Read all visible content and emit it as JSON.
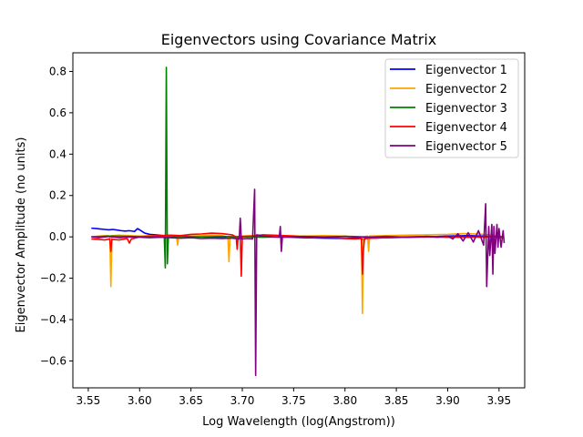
{
  "chart_data": {
    "type": "line",
    "title": "Eigenvectors using Covariance Matrix",
    "xlabel": "Log Wavelength (log(Angstrom))",
    "ylabel": "Eigenvector Amplitude (no units)",
    "xlim": [
      3.535,
      3.975
    ],
    "ylim": [
      -0.73,
      0.89
    ],
    "xticks": [
      3.55,
      3.6,
      3.65,
      3.7,
      3.75,
      3.8,
      3.85,
      3.9,
      3.95
    ],
    "xtick_labels": [
      "3.55",
      "3.60",
      "3.65",
      "3.70",
      "3.75",
      "3.80",
      "3.85",
      "3.90",
      "3.95"
    ],
    "yticks": [
      -0.6,
      -0.4,
      -0.2,
      0.0,
      0.2,
      0.4,
      0.6,
      0.8
    ],
    "ytick_labels": [
      "−0.6",
      "−0.4",
      "−0.2",
      "0.0",
      "0.2",
      "0.4",
      "0.6",
      "0.8"
    ],
    "grid": false,
    "legend_position": "top-right",
    "series": [
      {
        "name": "Eigenvector 1",
        "color": "#0000ff",
        "points": [
          [
            3.553,
            0.042
          ],
          [
            3.558,
            0.04
          ],
          [
            3.562,
            0.038
          ],
          [
            3.566,
            0.036
          ],
          [
            3.57,
            0.034
          ],
          [
            3.574,
            0.036
          ],
          [
            3.578,
            0.033
          ],
          [
            3.582,
            0.03
          ],
          [
            3.586,
            0.028
          ],
          [
            3.59,
            0.03
          ],
          [
            3.595,
            0.026
          ],
          [
            3.598,
            0.04
          ],
          [
            3.6,
            0.034
          ],
          [
            3.605,
            0.018
          ],
          [
            3.61,
            0.012
          ],
          [
            3.615,
            0.01
          ],
          [
            3.62,
            0.008
          ],
          [
            3.625,
            0.005
          ],
          [
            3.63,
            0.006
          ],
          [
            3.64,
            0.004
          ],
          [
            3.65,
            0.002
          ],
          [
            3.66,
            0.0
          ],
          [
            3.68,
            -0.002
          ],
          [
            3.7,
            0.0
          ],
          [
            3.72,
            0.002
          ],
          [
            3.74,
            0.0
          ],
          [
            3.76,
            -0.004
          ],
          [
            3.78,
            -0.006
          ],
          [
            3.8,
            -0.008
          ],
          [
            3.815,
            -0.006
          ],
          [
            3.818,
            -0.015
          ],
          [
            3.821,
            -0.006
          ],
          [
            3.84,
            -0.004
          ],
          [
            3.86,
            -0.002
          ],
          [
            3.88,
            0.0
          ],
          [
            3.9,
            0.004
          ],
          [
            3.92,
            0.006
          ],
          [
            3.935,
            0.004
          ],
          [
            3.945,
            0.0
          ],
          [
            3.955,
            -0.004
          ]
        ]
      },
      {
        "name": "Eigenvector 2",
        "color": "#ffa500",
        "points": [
          [
            3.553,
            0.0
          ],
          [
            3.56,
            0.004
          ],
          [
            3.568,
            0.006
          ],
          [
            3.571,
            0.004
          ],
          [
            3.572,
            -0.24
          ],
          [
            3.573,
            0.006
          ],
          [
            3.58,
            0.008
          ],
          [
            3.59,
            0.006
          ],
          [
            3.6,
            0.004
          ],
          [
            3.61,
            0.006
          ],
          [
            3.62,
            0.004
          ],
          [
            3.63,
            0.002
          ],
          [
            3.636,
            0.0
          ],
          [
            3.637,
            -0.04
          ],
          [
            3.638,
            0.0
          ],
          [
            3.65,
            0.004
          ],
          [
            3.66,
            0.006
          ],
          [
            3.67,
            0.008
          ],
          [
            3.68,
            0.006
          ],
          [
            3.686,
            0.0
          ],
          [
            3.687,
            -0.12
          ],
          [
            3.688,
            0.0
          ],
          [
            3.7,
            0.004
          ],
          [
            3.72,
            0.008
          ],
          [
            3.74,
            0.006
          ],
          [
            3.76,
            0.004
          ],
          [
            3.78,
            0.006
          ],
          [
            3.8,
            0.004
          ],
          [
            3.816,
            0.0
          ],
          [
            3.817,
            -0.37
          ],
          [
            3.818,
            0.0
          ],
          [
            3.822,
            0.004
          ],
          [
            3.823,
            -0.07
          ],
          [
            3.824,
            0.004
          ],
          [
            3.84,
            0.006
          ],
          [
            3.86,
            0.008
          ],
          [
            3.88,
            0.01
          ],
          [
            3.9,
            0.012
          ],
          [
            3.915,
            0.016
          ],
          [
            3.93,
            0.014
          ],
          [
            3.94,
            0.01
          ],
          [
            3.95,
            0.004
          ],
          [
            3.955,
            0.0
          ]
        ]
      },
      {
        "name": "Eigenvector 3",
        "color": "#008000",
        "points": [
          [
            3.553,
            0.0
          ],
          [
            3.57,
            0.004
          ],
          [
            3.59,
            0.002
          ],
          [
            3.61,
            0.0
          ],
          [
            3.62,
            0.002
          ],
          [
            3.624,
            0.0
          ],
          [
            3.625,
            -0.15
          ],
          [
            3.626,
            0.82
          ],
          [
            3.627,
            -0.13
          ],
          [
            3.628,
            0.0
          ],
          [
            3.64,
            0.002
          ],
          [
            3.66,
            0.0
          ],
          [
            3.68,
            0.002
          ],
          [
            3.7,
            0.0
          ],
          [
            3.72,
            -0.002
          ],
          [
            3.74,
            0.0
          ],
          [
            3.76,
            0.002
          ],
          [
            3.78,
            0.0
          ],
          [
            3.8,
            0.002
          ],
          [
            3.82,
            0.0
          ],
          [
            3.84,
            -0.002
          ],
          [
            3.86,
            0.0
          ],
          [
            3.88,
            0.002
          ],
          [
            3.9,
            0.0
          ],
          [
            3.92,
            -0.002
          ],
          [
            3.94,
            0.002
          ],
          [
            3.955,
            0.0
          ]
        ]
      },
      {
        "name": "Eigenvector 4",
        "color": "#ff0000",
        "points": [
          [
            3.553,
            -0.01
          ],
          [
            3.56,
            -0.012
          ],
          [
            3.566,
            -0.015
          ],
          [
            3.571,
            -0.01
          ],
          [
            3.572,
            -0.07
          ],
          [
            3.573,
            -0.012
          ],
          [
            3.58,
            -0.015
          ],
          [
            3.588,
            -0.008
          ],
          [
            3.59,
            -0.03
          ],
          [
            3.592,
            -0.01
          ],
          [
            3.6,
            0.0
          ],
          [
            3.61,
            0.004
          ],
          [
            3.62,
            0.006
          ],
          [
            3.63,
            0.008
          ],
          [
            3.64,
            0.006
          ],
          [
            3.65,
            0.012
          ],
          [
            3.66,
            0.014
          ],
          [
            3.67,
            0.018
          ],
          [
            3.68,
            0.016
          ],
          [
            3.69,
            0.01
          ],
          [
            3.694,
            0.0
          ],
          [
            3.695,
            -0.06
          ],
          [
            3.696,
            0.0
          ],
          [
            3.698,
            0.004
          ],
          [
            3.699,
            -0.19
          ],
          [
            3.7,
            0.002
          ],
          [
            3.71,
            0.004
          ],
          [
            3.72,
            0.01
          ],
          [
            3.73,
            0.008
          ],
          [
            3.74,
            0.006
          ],
          [
            3.75,
            0.004
          ],
          [
            3.76,
            0.0
          ],
          [
            3.77,
            -0.004
          ],
          [
            3.78,
            -0.002
          ],
          [
            3.79,
            -0.004
          ],
          [
            3.8,
            -0.008
          ],
          [
            3.81,
            -0.01
          ],
          [
            3.816,
            -0.008
          ],
          [
            3.817,
            -0.18
          ],
          [
            3.818,
            -0.06
          ],
          [
            3.819,
            -0.008
          ],
          [
            3.83,
            -0.006
          ],
          [
            3.84,
            -0.004
          ],
          [
            3.86,
            -0.002
          ],
          [
            3.88,
            0.0
          ],
          [
            3.9,
            -0.002
          ],
          [
            3.92,
            0.0
          ],
          [
            3.935,
            -0.002
          ],
          [
            3.945,
            0.002
          ],
          [
            3.955,
            0.0
          ]
        ]
      },
      {
        "name": "Eigenvector 5",
        "color": "#800080",
        "points": [
          [
            3.553,
            0.0
          ],
          [
            3.56,
            -0.004
          ],
          [
            3.57,
            0.002
          ],
          [
            3.58,
            -0.004
          ],
          [
            3.59,
            0.0
          ],
          [
            3.6,
            -0.002
          ],
          [
            3.61,
            -0.004
          ],
          [
            3.62,
            -0.002
          ],
          [
            3.63,
            -0.004
          ],
          [
            3.64,
            -0.006
          ],
          [
            3.65,
            -0.004
          ],
          [
            3.66,
            -0.008
          ],
          [
            3.67,
            -0.006
          ],
          [
            3.68,
            -0.008
          ],
          [
            3.69,
            -0.006
          ],
          [
            3.697,
            -0.01
          ],
          [
            3.698,
            0.09
          ],
          [
            3.699,
            -0.01
          ],
          [
            3.705,
            -0.008
          ],
          [
            3.71,
            -0.01
          ],
          [
            3.712,
            0.23
          ],
          [
            3.713,
            -0.67
          ],
          [
            3.714,
            0.01
          ],
          [
            3.72,
            0.004
          ],
          [
            3.73,
            0.0
          ],
          [
            3.736,
            -0.002
          ],
          [
            3.737,
            0.05
          ],
          [
            3.738,
            -0.07
          ],
          [
            3.739,
            -0.002
          ],
          [
            3.75,
            0.0
          ],
          [
            3.76,
            0.002
          ],
          [
            3.77,
            0.0
          ],
          [
            3.78,
            -0.002
          ],
          [
            3.79,
            0.0
          ],
          [
            3.8,
            0.002
          ],
          [
            3.81,
            0.0
          ],
          [
            3.82,
            -0.002
          ],
          [
            3.83,
            0.0
          ],
          [
            3.84,
            0.002
          ],
          [
            3.85,
            0.0
          ],
          [
            3.86,
            -0.002
          ],
          [
            3.87,
            0.0
          ],
          [
            3.88,
            0.002
          ],
          [
            3.89,
            -0.002
          ],
          [
            3.9,
            0.004
          ],
          [
            3.905,
            -0.01
          ],
          [
            3.91,
            0.015
          ],
          [
            3.915,
            -0.02
          ],
          [
            3.92,
            0.02
          ],
          [
            3.925,
            -0.025
          ],
          [
            3.93,
            0.03
          ],
          [
            3.935,
            -0.04
          ],
          [
            3.937,
            0.16
          ],
          [
            3.938,
            -0.24
          ],
          [
            3.94,
            0.05
          ],
          [
            3.941,
            -0.09
          ],
          [
            3.943,
            0.06
          ],
          [
            3.944,
            -0.18
          ],
          [
            3.945,
            0.05
          ],
          [
            3.946,
            -0.08
          ],
          [
            3.948,
            0.06
          ],
          [
            3.949,
            -0.05
          ],
          [
            3.95,
            0.04
          ],
          [
            3.952,
            -0.05
          ],
          [
            3.954,
            0.03
          ],
          [
            3.955,
            -0.03
          ]
        ]
      }
    ]
  }
}
